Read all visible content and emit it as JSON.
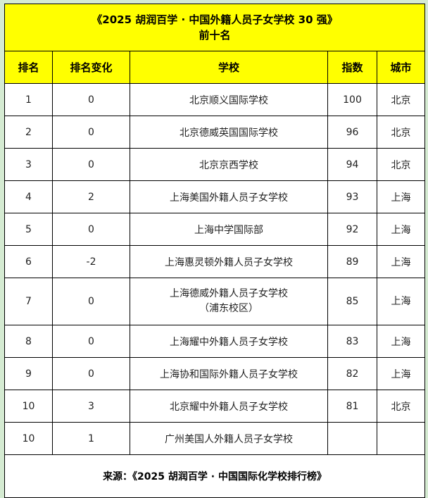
{
  "title": {
    "line1": "《2025 胡润百学 · 中国外籍人员子女学校 30 强》",
    "line2": "前十名"
  },
  "headers": [
    "排名",
    "排名变化",
    "学校",
    "指数",
    "城市"
  ],
  "rows": [
    {
      "rank": "1",
      "change": "0",
      "school": "北京顺义国际学校",
      "school2": "",
      "index": "100",
      "city": "北京"
    },
    {
      "rank": "2",
      "change": "0",
      "school": "北京德威英国国际学校",
      "school2": "",
      "index": "96",
      "city": "北京"
    },
    {
      "rank": "3",
      "change": "0",
      "school": "北京京西学校",
      "school2": "",
      "index": "94",
      "city": "北京"
    },
    {
      "rank": "4",
      "change": "2",
      "school": "上海美国外籍人员子女学校",
      "school2": "",
      "index": "93",
      "city": "上海"
    },
    {
      "rank": "5",
      "change": "0",
      "school": "上海中学国际部",
      "school2": "",
      "index": "92",
      "city": "上海"
    },
    {
      "rank": "6",
      "change": "-2",
      "school": "上海惠灵顿外籍人员子女学校",
      "school2": "",
      "index": "89",
      "city": "上海"
    },
    {
      "rank": "7",
      "change": "0",
      "school": "上海德威外籍人员子女学校",
      "school2": "（浦东校区）",
      "index": "85",
      "city": "上海"
    },
    {
      "rank": "8",
      "change": "0",
      "school": "上海耀中外籍人员子女学校",
      "school2": "",
      "index": "83",
      "city": "上海"
    },
    {
      "rank": "9",
      "change": "0",
      "school": "上海协和国际外籍人员子女学校",
      "school2": "",
      "index": "82",
      "city": "上海"
    },
    {
      "rank": "10",
      "change": "3",
      "school": "北京耀中外籍人员子女学校",
      "school2": "",
      "index": "81",
      "city": "北京"
    },
    {
      "rank": "10",
      "change": "1",
      "school": "广州美国人外籍人员子女学校",
      "school2": "",
      "index": "",
      "city": ""
    }
  ],
  "footer": "来源：《2025 胡润百学 · 中国国际化学校排行榜》"
}
